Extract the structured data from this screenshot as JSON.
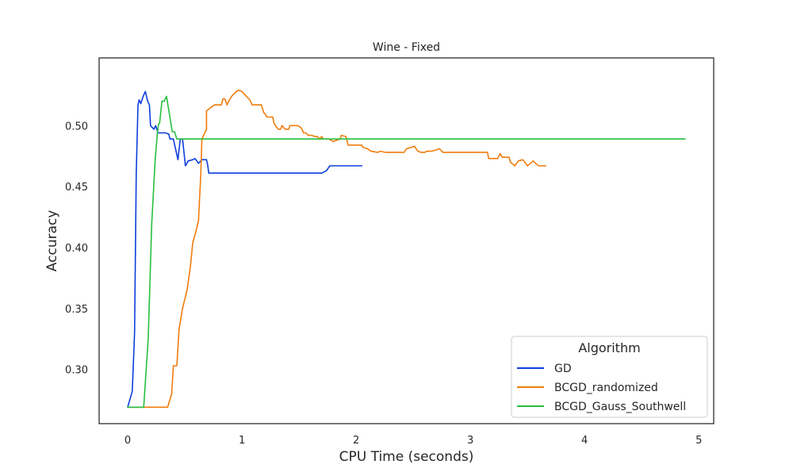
{
  "chart_data": {
    "type": "line",
    "title": "Wine - Fixed",
    "xlabel": "CPU Time (seconds)",
    "ylabel": "Accuracy",
    "xlim": [
      -0.25,
      5.13
    ],
    "ylim": [
      0.2555,
      0.5555
    ],
    "xticks": [
      0,
      1,
      2,
      3,
      4,
      5
    ],
    "yticks": [
      0.3,
      0.35,
      0.4,
      0.45,
      0.5
    ],
    "ytick_labels": [
      "0.30",
      "0.35",
      "0.40",
      "0.45",
      "0.50"
    ],
    "grid": false,
    "legend": {
      "title": "Algorithm",
      "position": "lower-right"
    },
    "series": [
      {
        "name": "GD",
        "color": "#0c3fdc",
        "points": [
          [
            0.0,
            0.269
          ],
          [
            0.04,
            0.282
          ],
          [
            0.06,
            0.33
          ],
          [
            0.075,
            0.46
          ],
          [
            0.09,
            0.517
          ],
          [
            0.1,
            0.521
          ],
          [
            0.115,
            0.518
          ],
          [
            0.135,
            0.524
          ],
          [
            0.155,
            0.528
          ],
          [
            0.175,
            0.52
          ],
          [
            0.19,
            0.517
          ],
          [
            0.2,
            0.5
          ],
          [
            0.23,
            0.497
          ],
          [
            0.245,
            0.5
          ],
          [
            0.265,
            0.494
          ],
          [
            0.31,
            0.494
          ],
          [
            0.33,
            0.494
          ],
          [
            0.36,
            0.493
          ],
          [
            0.37,
            0.489
          ],
          [
            0.4,
            0.489
          ],
          [
            0.44,
            0.472
          ],
          [
            0.46,
            0.489
          ],
          [
            0.48,
            0.489
          ],
          [
            0.505,
            0.467
          ],
          [
            0.53,
            0.471
          ],
          [
            0.57,
            0.472
          ],
          [
            0.59,
            0.473
          ],
          [
            0.62,
            0.469
          ],
          [
            0.65,
            0.472
          ],
          [
            0.69,
            0.472
          ],
          [
            0.7,
            0.468
          ],
          [
            0.71,
            0.461
          ],
          [
            1.7,
            0.461
          ],
          [
            1.74,
            0.463
          ],
          [
            1.77,
            0.467
          ],
          [
            2.05,
            0.467
          ]
        ]
      },
      {
        "name": "BCGD_randomized",
        "color": "#f07c0c",
        "points": [
          [
            0.0,
            0.269
          ],
          [
            0.35,
            0.269
          ],
          [
            0.385,
            0.28
          ],
          [
            0.4,
            0.303
          ],
          [
            0.43,
            0.303
          ],
          [
            0.45,
            0.333
          ],
          [
            0.48,
            0.35
          ],
          [
            0.52,
            0.365
          ],
          [
            0.55,
            0.385
          ],
          [
            0.57,
            0.404
          ],
          [
            0.6,
            0.414
          ],
          [
            0.62,
            0.422
          ],
          [
            0.64,
            0.46
          ],
          [
            0.65,
            0.489
          ],
          [
            0.675,
            0.494
          ],
          [
            0.69,
            0.497
          ],
          [
            0.69,
            0.512
          ],
          [
            0.73,
            0.515
          ],
          [
            0.76,
            0.517
          ],
          [
            0.82,
            0.517
          ],
          [
            0.835,
            0.522
          ],
          [
            0.85,
            0.522
          ],
          [
            0.87,
            0.517
          ],
          [
            0.89,
            0.521
          ],
          [
            0.91,
            0.524
          ],
          [
            0.94,
            0.527
          ],
          [
            0.97,
            0.529
          ],
          [
            1.0,
            0.528
          ],
          [
            1.03,
            0.525
          ],
          [
            1.07,
            0.521
          ],
          [
            1.09,
            0.517
          ],
          [
            1.17,
            0.517
          ],
          [
            1.19,
            0.511
          ],
          [
            1.22,
            0.507
          ],
          [
            1.27,
            0.507
          ],
          [
            1.28,
            0.502
          ],
          [
            1.3,
            0.499
          ],
          [
            1.32,
            0.497
          ],
          [
            1.34,
            0.497
          ],
          [
            1.35,
            0.5
          ],
          [
            1.38,
            0.497
          ],
          [
            1.41,
            0.497
          ],
          [
            1.42,
            0.5
          ],
          [
            1.49,
            0.5
          ],
          [
            1.52,
            0.498
          ],
          [
            1.54,
            0.494
          ],
          [
            1.56,
            0.494
          ],
          [
            1.58,
            0.492
          ],
          [
            1.61,
            0.492
          ],
          [
            1.64,
            0.491
          ],
          [
            1.66,
            0.491
          ],
          [
            1.68,
            0.489
          ],
          [
            1.7,
            0.491
          ],
          [
            1.71,
            0.489
          ],
          [
            1.76,
            0.489
          ],
          [
            1.8,
            0.487
          ],
          [
            1.86,
            0.489
          ],
          [
            1.87,
            0.492
          ],
          [
            1.91,
            0.491
          ],
          [
            1.93,
            0.484
          ],
          [
            2.05,
            0.484
          ],
          [
            2.06,
            0.482
          ],
          [
            2.1,
            0.481
          ],
          [
            2.13,
            0.479
          ],
          [
            2.19,
            0.478
          ],
          [
            2.21,
            0.479
          ],
          [
            2.26,
            0.478
          ],
          [
            2.34,
            0.478
          ],
          [
            2.42,
            0.478
          ],
          [
            2.44,
            0.481
          ],
          [
            2.48,
            0.482
          ],
          [
            2.51,
            0.483
          ],
          [
            2.54,
            0.479
          ],
          [
            2.57,
            0.478
          ],
          [
            2.6,
            0.478
          ],
          [
            2.62,
            0.479
          ],
          [
            2.66,
            0.479
          ],
          [
            2.7,
            0.48
          ],
          [
            2.73,
            0.481
          ],
          [
            2.76,
            0.478
          ],
          [
            2.95,
            0.478
          ],
          [
            3.0,
            0.478
          ],
          [
            3.13,
            0.478
          ],
          [
            3.15,
            0.478
          ],
          [
            3.16,
            0.473
          ],
          [
            3.2,
            0.473
          ],
          [
            3.24,
            0.473
          ],
          [
            3.26,
            0.477
          ],
          [
            3.28,
            0.474
          ],
          [
            3.34,
            0.474
          ],
          [
            3.35,
            0.47
          ],
          [
            3.39,
            0.467
          ],
          [
            3.42,
            0.471
          ],
          [
            3.46,
            0.472
          ],
          [
            3.5,
            0.467
          ],
          [
            3.55,
            0.471
          ],
          [
            3.57,
            0.469
          ],
          [
            3.6,
            0.467
          ],
          [
            3.66,
            0.467
          ]
        ]
      },
      {
        "name": "BCGD_Gauss_Southwell",
        "color": "#28be40",
        "points": [
          [
            0.0,
            0.269
          ],
          [
            0.14,
            0.269
          ],
          [
            0.18,
            0.325
          ],
          [
            0.21,
            0.419
          ],
          [
            0.24,
            0.471
          ],
          [
            0.26,
            0.494
          ],
          [
            0.27,
            0.501
          ],
          [
            0.28,
            0.502
          ],
          [
            0.3,
            0.52
          ],
          [
            0.32,
            0.52
          ],
          [
            0.34,
            0.524
          ],
          [
            0.355,
            0.515
          ],
          [
            0.375,
            0.504
          ],
          [
            0.39,
            0.495
          ],
          [
            0.41,
            0.495
          ],
          [
            0.43,
            0.489
          ],
          [
            4.88,
            0.489
          ]
        ]
      }
    ]
  }
}
